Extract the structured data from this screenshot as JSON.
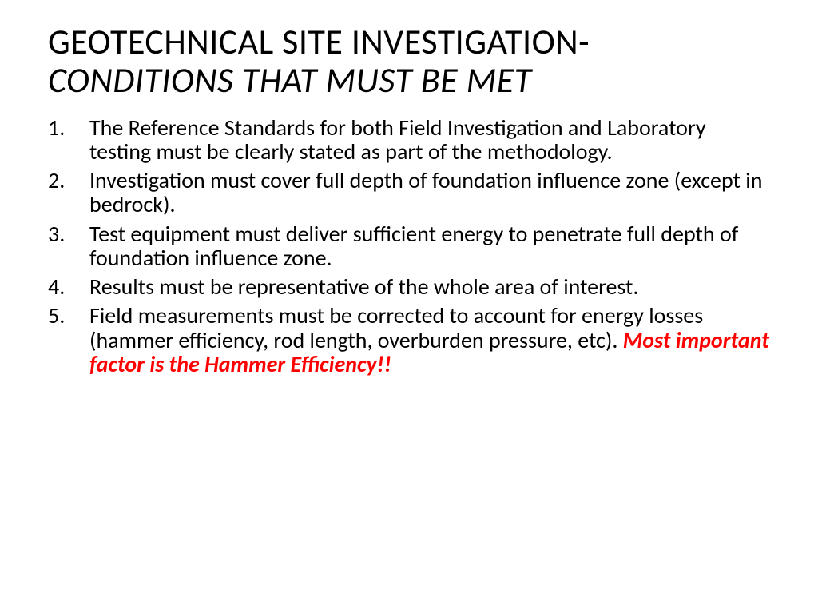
{
  "title": {
    "line1": "GEOTECHNICAL SITE INVESTIGATION-",
    "line2": "CONDITIONS THAT MUST BE MET"
  },
  "items": [
    {
      "text": "The Reference Standards for both Field Investigation and Laboratory testing must be clearly stated as part of the methodology."
    },
    {
      "text": "Investigation must cover full depth of foundation influence zone (except in bedrock)."
    },
    {
      "text": "Test equipment must deliver sufficient energy to penetrate full depth of foundation influence zone."
    },
    {
      "text": "Results must be representative of the whole area of interest."
    },
    {
      "text": "Field measurements must be corrected to account for energy losses (hammer efficiency, rod length, overburden pressure, etc). ",
      "emphasis": "Most important factor is the Hammer Efficiency!!"
    }
  ],
  "styling": {
    "background_color": "#ffffff",
    "text_color": "#000000",
    "emphasis_color": "#ff0000",
    "title_fontsize": 44,
    "body_fontsize": 28,
    "font_family": "Calibri"
  }
}
